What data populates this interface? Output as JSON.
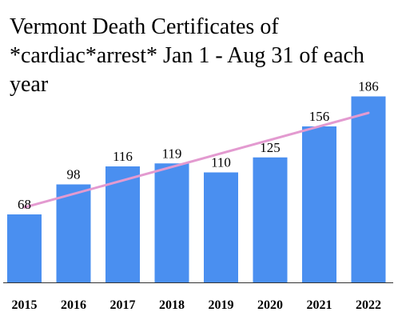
{
  "chart_data": {
    "type": "bar",
    "title": "Vermont Death Certificates of *cardiac*arrest* Jan 1 - Aug 31 of each year",
    "categories": [
      "2015",
      "2016",
      "2017",
      "2018",
      "2019",
      "2020",
      "2021",
      "2022"
    ],
    "values": [
      68,
      98,
      116,
      119,
      110,
      125,
      156,
      186
    ],
    "ylim": [
      0,
      200
    ],
    "grid": false,
    "legend": "none",
    "xlabel": "",
    "ylabel": "",
    "trendline": {
      "type": "linear",
      "color": "#e39ad0"
    },
    "colors": {
      "bar": "#4a8ff0",
      "axis": "#333333"
    }
  }
}
